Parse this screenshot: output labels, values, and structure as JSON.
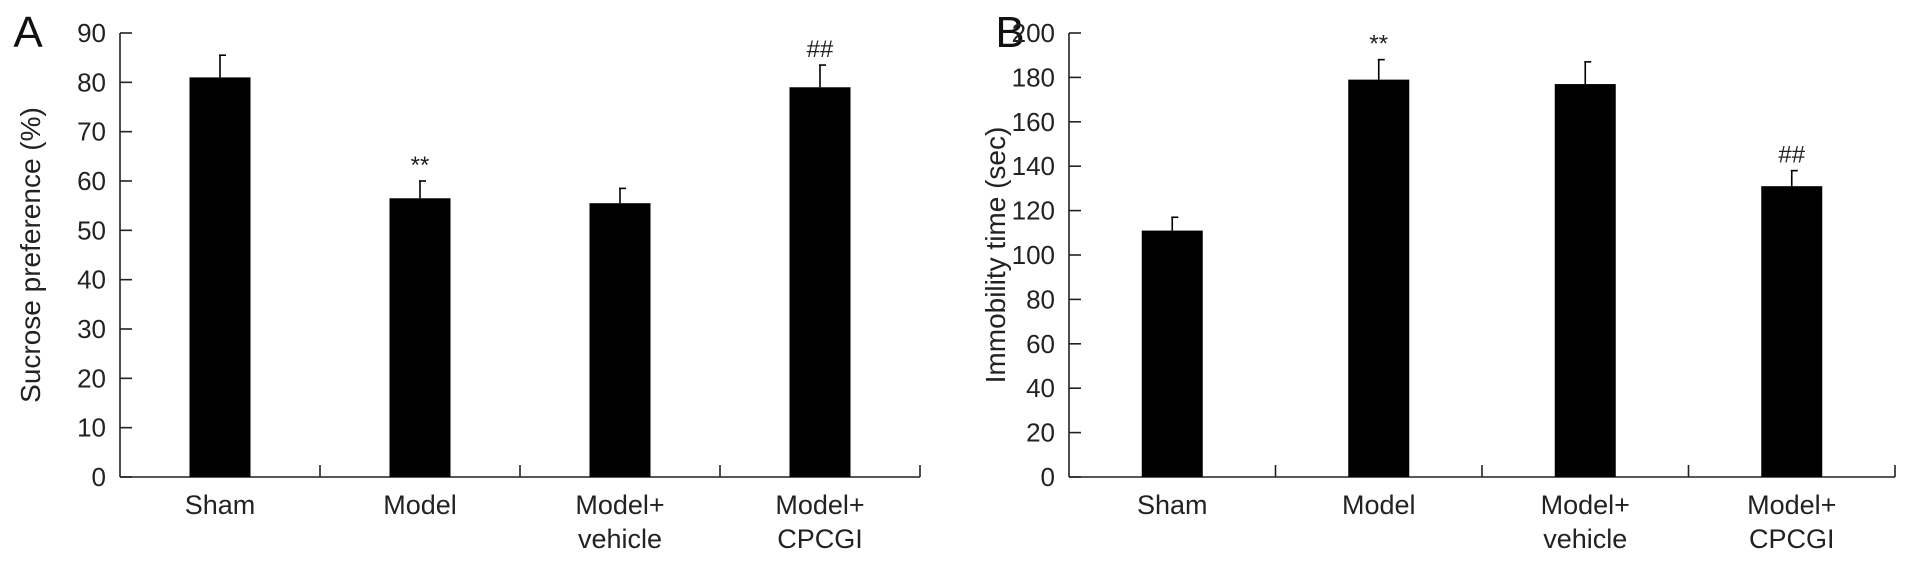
{
  "chart_data": [
    {
      "type": "bar",
      "panel_label": "A",
      "ylabel": "Sucrose preference (%)",
      "ylim": [
        0,
        90
      ],
      "ytick_step": 10,
      "categories": [
        [
          "Sham"
        ],
        [
          "Model"
        ],
        [
          "Model+",
          "vehicle"
        ],
        [
          "Model+",
          "CPCGI"
        ]
      ],
      "values": [
        81,
        56.5,
        55.5,
        79
      ],
      "errors": [
        4.5,
        3.5,
        3,
        4.5
      ],
      "annotations": [
        "",
        "**",
        "",
        "##"
      ]
    },
    {
      "type": "bar",
      "panel_label": "B",
      "ylabel": "Immobility time (sec)",
      "ylim": [
        0,
        200
      ],
      "ytick_step": 20,
      "categories": [
        [
          "Sham"
        ],
        [
          "Model"
        ],
        [
          "Model+",
          "vehicle"
        ],
        [
          "Model+",
          "CPCGI"
        ]
      ],
      "values": [
        111,
        179,
        177,
        131
      ],
      "errors": [
        6,
        9,
        10,
        7
      ],
      "annotations": [
        "",
        "**",
        "",
        "##"
      ]
    }
  ]
}
